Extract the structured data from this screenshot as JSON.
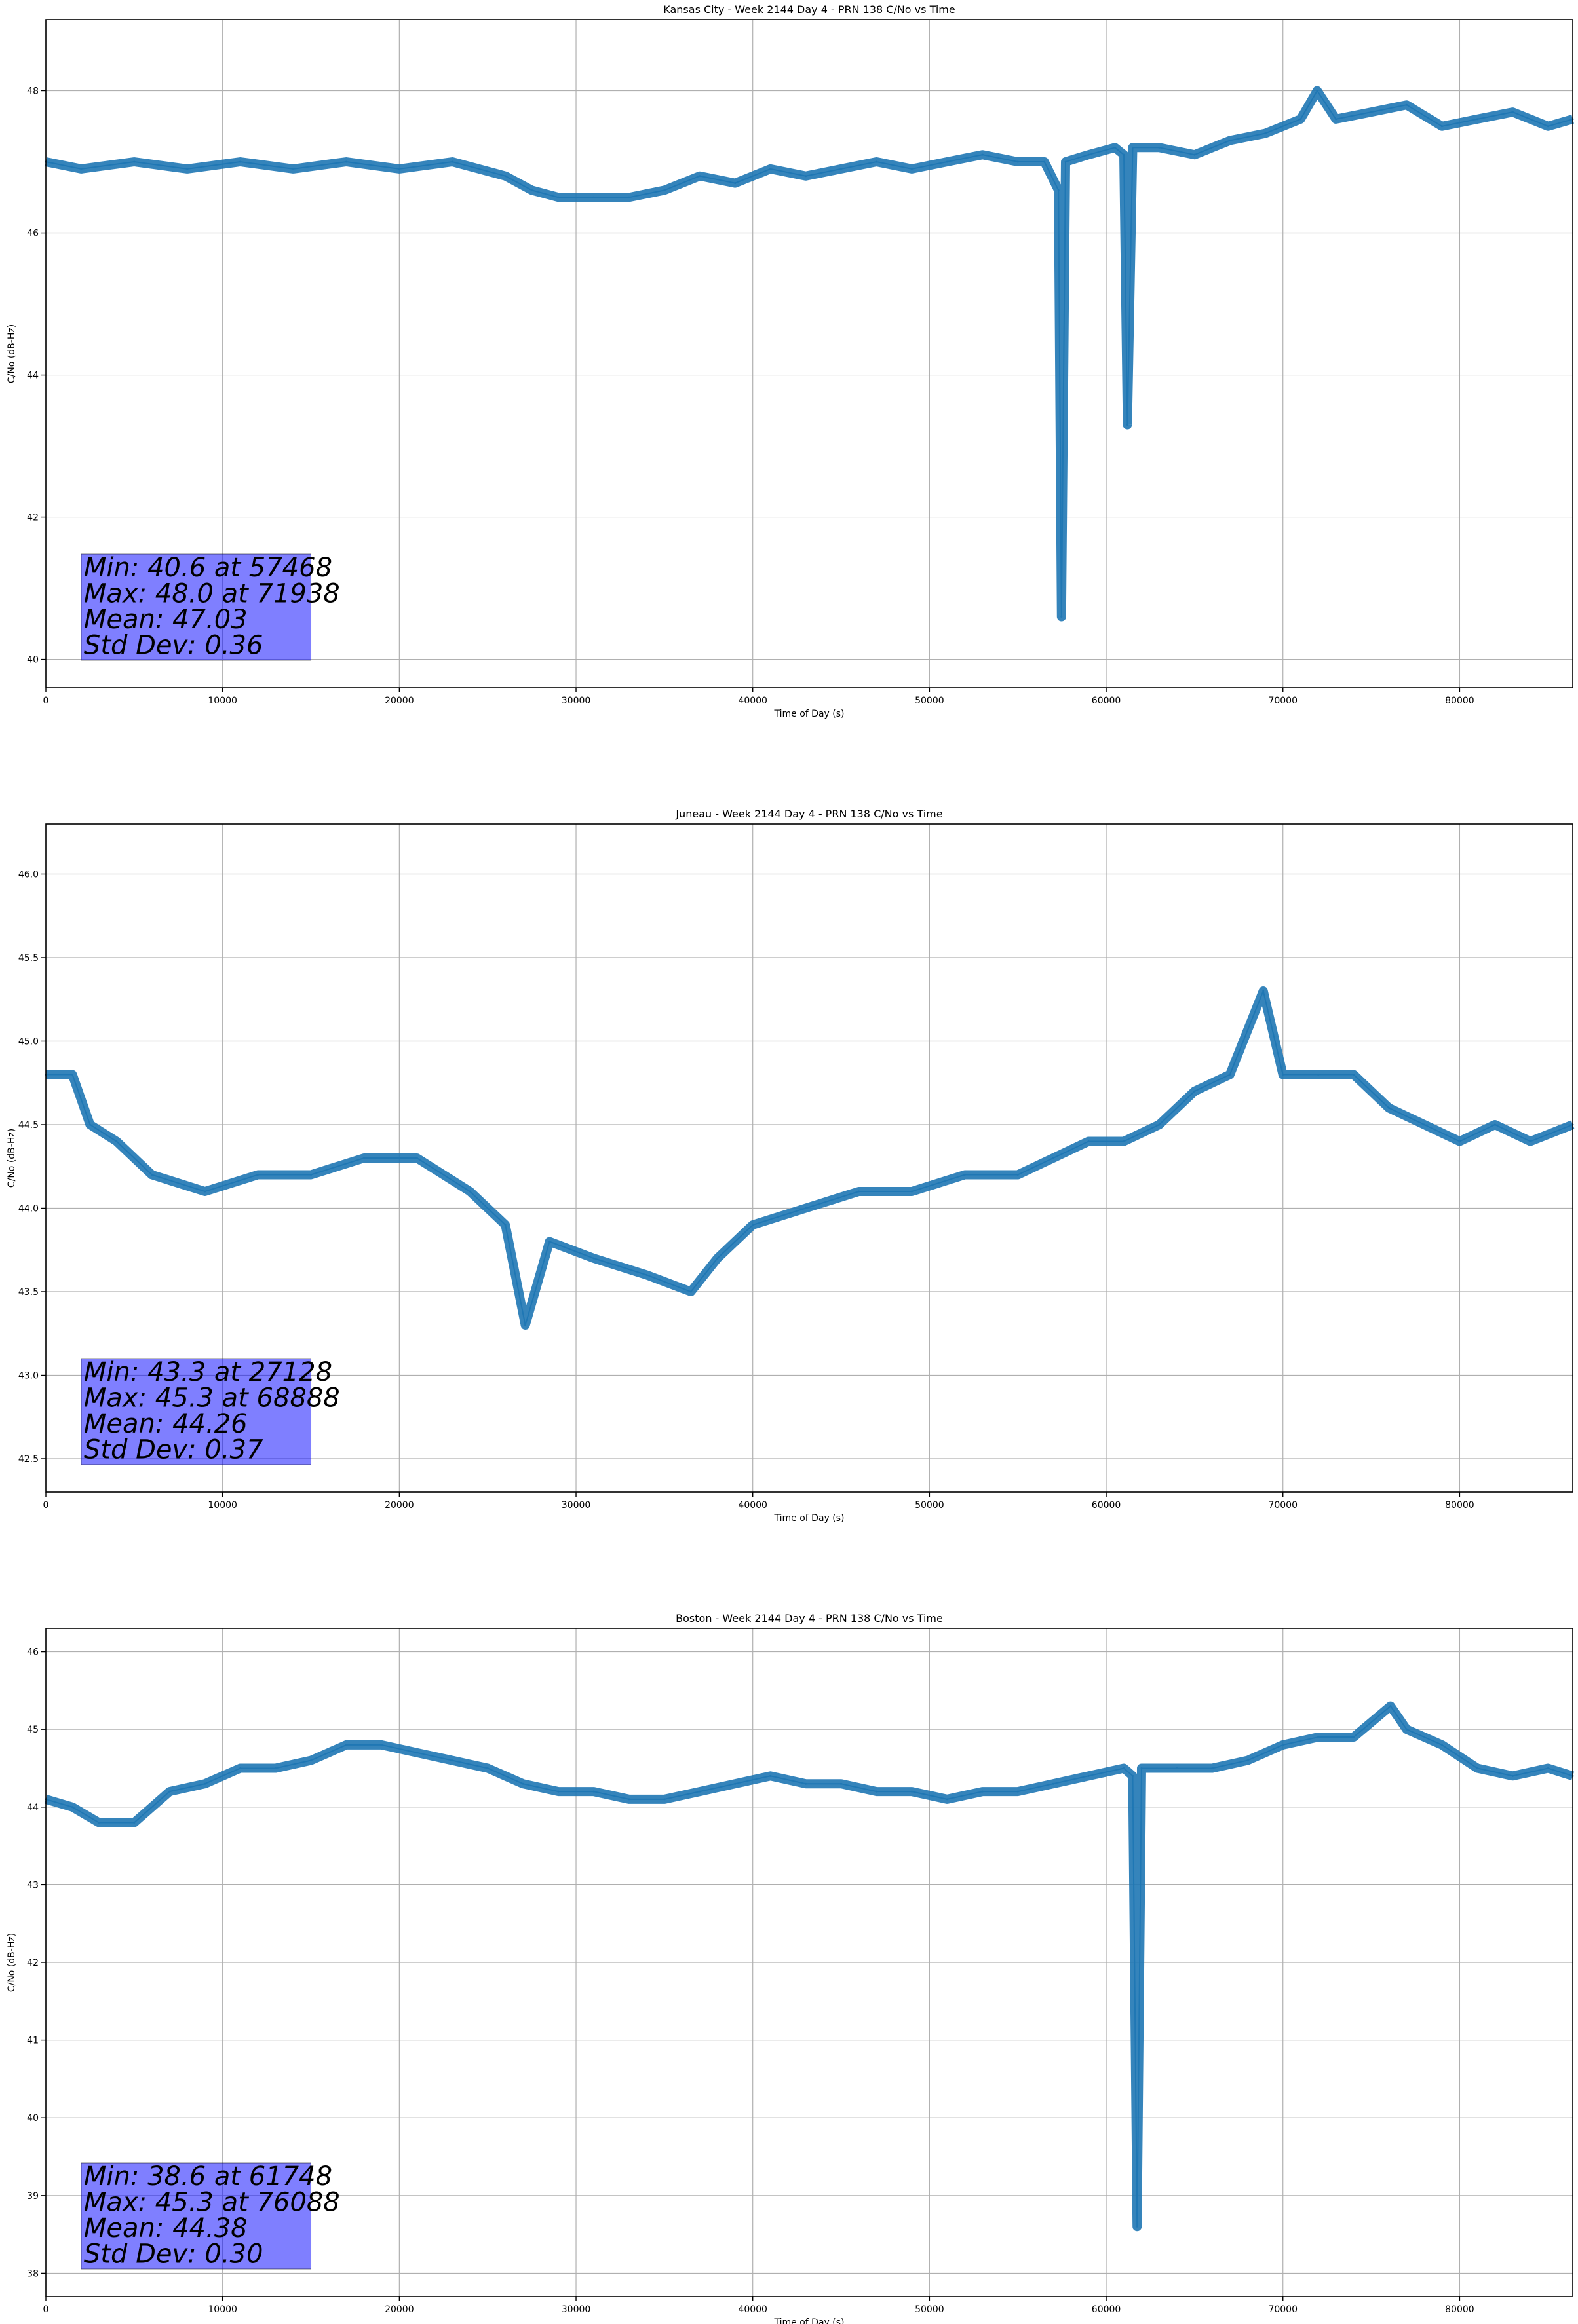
{
  "chart_data": [
    {
      "type": "line",
      "title": "Kansas City - Week 2144 Day 4 - PRN 138 C/No vs Time",
      "xlabel": "Time of Day (s)",
      "ylabel": "C/No (dB-Hz)",
      "xlim": [
        0,
        86400
      ],
      "ylim": [
        39.6,
        49.0
      ],
      "xticks": [
        0,
        10000,
        20000,
        30000,
        40000,
        50000,
        60000,
        70000,
        80000
      ],
      "yticks": [
        40,
        42,
        44,
        46,
        48
      ],
      "grid": true,
      "line_color": "#1f77b4",
      "series": [
        {
          "x": [
            0,
            2000,
            5000,
            8000,
            11000,
            14000,
            17000,
            20000,
            23000,
            26000,
            27500,
            29000,
            31000,
            33000,
            35000,
            37000,
            39000,
            41000,
            43000,
            45000,
            47000,
            49000,
            51000,
            53000,
            55000,
            56500,
            57300,
            57468,
            57700,
            59000,
            60500,
            61000,
            61200,
            61500,
            63000,
            65000,
            67000,
            69000,
            71000,
            71938,
            73000,
            75000,
            77000,
            79000,
            81000,
            83000,
            85000,
            86400
          ],
          "y": [
            47.0,
            46.9,
            47.0,
            46.9,
            47.0,
            46.9,
            47.0,
            46.9,
            47.0,
            46.8,
            46.6,
            46.5,
            46.5,
            46.5,
            46.6,
            46.8,
            46.7,
            46.9,
            46.8,
            46.9,
            47.0,
            46.9,
            47.0,
            47.1,
            47.0,
            47.0,
            46.6,
            40.6,
            47.0,
            47.1,
            47.2,
            47.1,
            43.3,
            47.2,
            47.2,
            47.1,
            47.3,
            47.4,
            47.6,
            48.0,
            47.6,
            47.7,
            47.8,
            47.5,
            47.6,
            47.7,
            47.5,
            47.6
          ]
        }
      ],
      "stats": [
        "Min: 40.6 at 57468",
        "Max: 48.0 at 71938",
        "Mean: 47.03",
        "Std Dev: 0.36"
      ]
    },
    {
      "type": "line",
      "title": "Juneau - Week 2144 Day 4 - PRN 138 C/No vs Time",
      "xlabel": "Time of Day (s)",
      "ylabel": "C/No (dB-Hz)",
      "xlim": [
        0,
        86400
      ],
      "ylim": [
        42.3,
        46.3
      ],
      "xticks": [
        0,
        10000,
        20000,
        30000,
        40000,
        50000,
        60000,
        70000,
        80000
      ],
      "yticks": [
        42.5,
        43.0,
        43.5,
        44.0,
        44.5,
        45.0,
        45.5,
        46.0
      ],
      "grid": true,
      "line_color": "#1f77b4",
      "series": [
        {
          "x": [
            0,
            1500,
            2500,
            4000,
            6000,
            9000,
            12000,
            15000,
            18000,
            21000,
            24000,
            26000,
            27128,
            28500,
            31000,
            34000,
            36500,
            38000,
            40000,
            43000,
            46000,
            49000,
            52000,
            55000,
            57000,
            59000,
            61000,
            63000,
            65000,
            67000,
            68888,
            70000,
            72000,
            74000,
            76000,
            78000,
            80000,
            82000,
            84000,
            86400
          ],
          "y": [
            44.8,
            44.8,
            44.5,
            44.4,
            44.2,
            44.1,
            44.2,
            44.2,
            44.3,
            44.3,
            44.1,
            43.9,
            43.3,
            43.8,
            43.7,
            43.6,
            43.5,
            43.7,
            43.9,
            44.0,
            44.1,
            44.1,
            44.2,
            44.2,
            44.3,
            44.4,
            44.4,
            44.5,
            44.7,
            44.8,
            45.3,
            44.8,
            44.8,
            44.8,
            44.6,
            44.5,
            44.4,
            44.5,
            44.4,
            44.5
          ]
        }
      ],
      "stats": [
        "Min: 43.3 at 27128",
        "Max: 45.3 at 68888",
        "Mean: 44.26",
        "Std Dev: 0.37"
      ]
    },
    {
      "type": "line",
      "title": "Boston - Week 2144 Day 4 - PRN 138 C/No vs Time",
      "xlabel": "Time of Day (s)",
      "ylabel": "C/No (dB-Hz)",
      "xlim": [
        0,
        86400
      ],
      "ylim": [
        37.7,
        46.3
      ],
      "xticks": [
        0,
        10000,
        20000,
        30000,
        40000,
        50000,
        60000,
        70000,
        80000
      ],
      "yticks": [
        38,
        39,
        40,
        41,
        42,
        43,
        44,
        45,
        46
      ],
      "grid": true,
      "line_color": "#1f77b4",
      "series": [
        {
          "x": [
            0,
            1500,
            3000,
            5000,
            7000,
            9000,
            11000,
            13000,
            15000,
            17000,
            19000,
            21000,
            23000,
            25000,
            27000,
            29000,
            31000,
            33000,
            35000,
            37000,
            39000,
            41000,
            43000,
            45000,
            47000,
            49000,
            51000,
            53000,
            55000,
            57000,
            59000,
            61000,
            61500,
            61748,
            62000,
            64000,
            66000,
            68000,
            70000,
            72000,
            74000,
            76088,
            77000,
            79000,
            81000,
            83000,
            85000,
            86400
          ],
          "y": [
            44.1,
            44.0,
            43.8,
            43.8,
            44.2,
            44.3,
            44.5,
            44.5,
            44.6,
            44.8,
            44.8,
            44.7,
            44.6,
            44.5,
            44.3,
            44.2,
            44.2,
            44.1,
            44.1,
            44.2,
            44.3,
            44.4,
            44.3,
            44.3,
            44.2,
            44.2,
            44.1,
            44.2,
            44.2,
            44.3,
            44.4,
            44.5,
            44.4,
            38.6,
            44.5,
            44.5,
            44.5,
            44.6,
            44.8,
            44.9,
            44.9,
            45.3,
            45.0,
            44.8,
            44.5,
            44.4,
            44.5,
            44.4
          ]
        }
      ],
      "stats": [
        "Min: 38.6 at 61748",
        "Max: 45.3 at 76088",
        "Mean: 44.38",
        "Std Dev: 0.30"
      ]
    }
  ]
}
